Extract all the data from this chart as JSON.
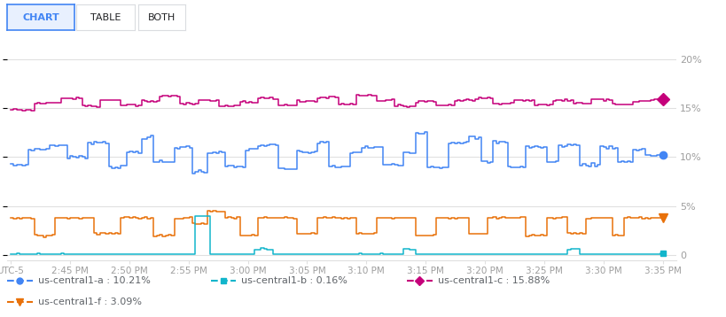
{
  "background_color": "#ffffff",
  "x_ticks": [
    "UTC-5",
    "2:45 PM",
    "2:50 PM",
    "2:55 PM",
    "3:00 PM",
    "3:05 PM",
    "3:10 PM",
    "3:15 PM",
    "3:20 PM",
    "3:25 PM",
    "3:30 PM",
    "3:35 PM"
  ],
  "y_right_labels": [
    "0",
    "5%",
    "10%",
    "15%",
    "20%"
  ],
  "y_right_positions": [
    0,
    5,
    10,
    15,
    20
  ],
  "ylim": [
    -0.5,
    21.5
  ],
  "series": {
    "us_central1_a": {
      "color": "#4285f4",
      "label": "us-central1-a : 10.21%",
      "marker": "o"
    },
    "us_central1_b": {
      "color": "#12b5cb",
      "label": "us-central1-b : 0.16%",
      "marker": "s"
    },
    "us_central1_c": {
      "color": "#c5007a",
      "label": "us-central1-c : 15.88%",
      "marker": "D"
    },
    "us_central1_f": {
      "color": "#e8710a",
      "label": "us-central1-f : 3.09%",
      "marker": "v"
    }
  },
  "grid_color": "#e0e0e0",
  "axis_color": "#9e9e9e",
  "text_color": "#202124",
  "legend_text_color": "#5f6368",
  "button_selected_color": "#4285f4",
  "button_border_color": "#dadce0"
}
